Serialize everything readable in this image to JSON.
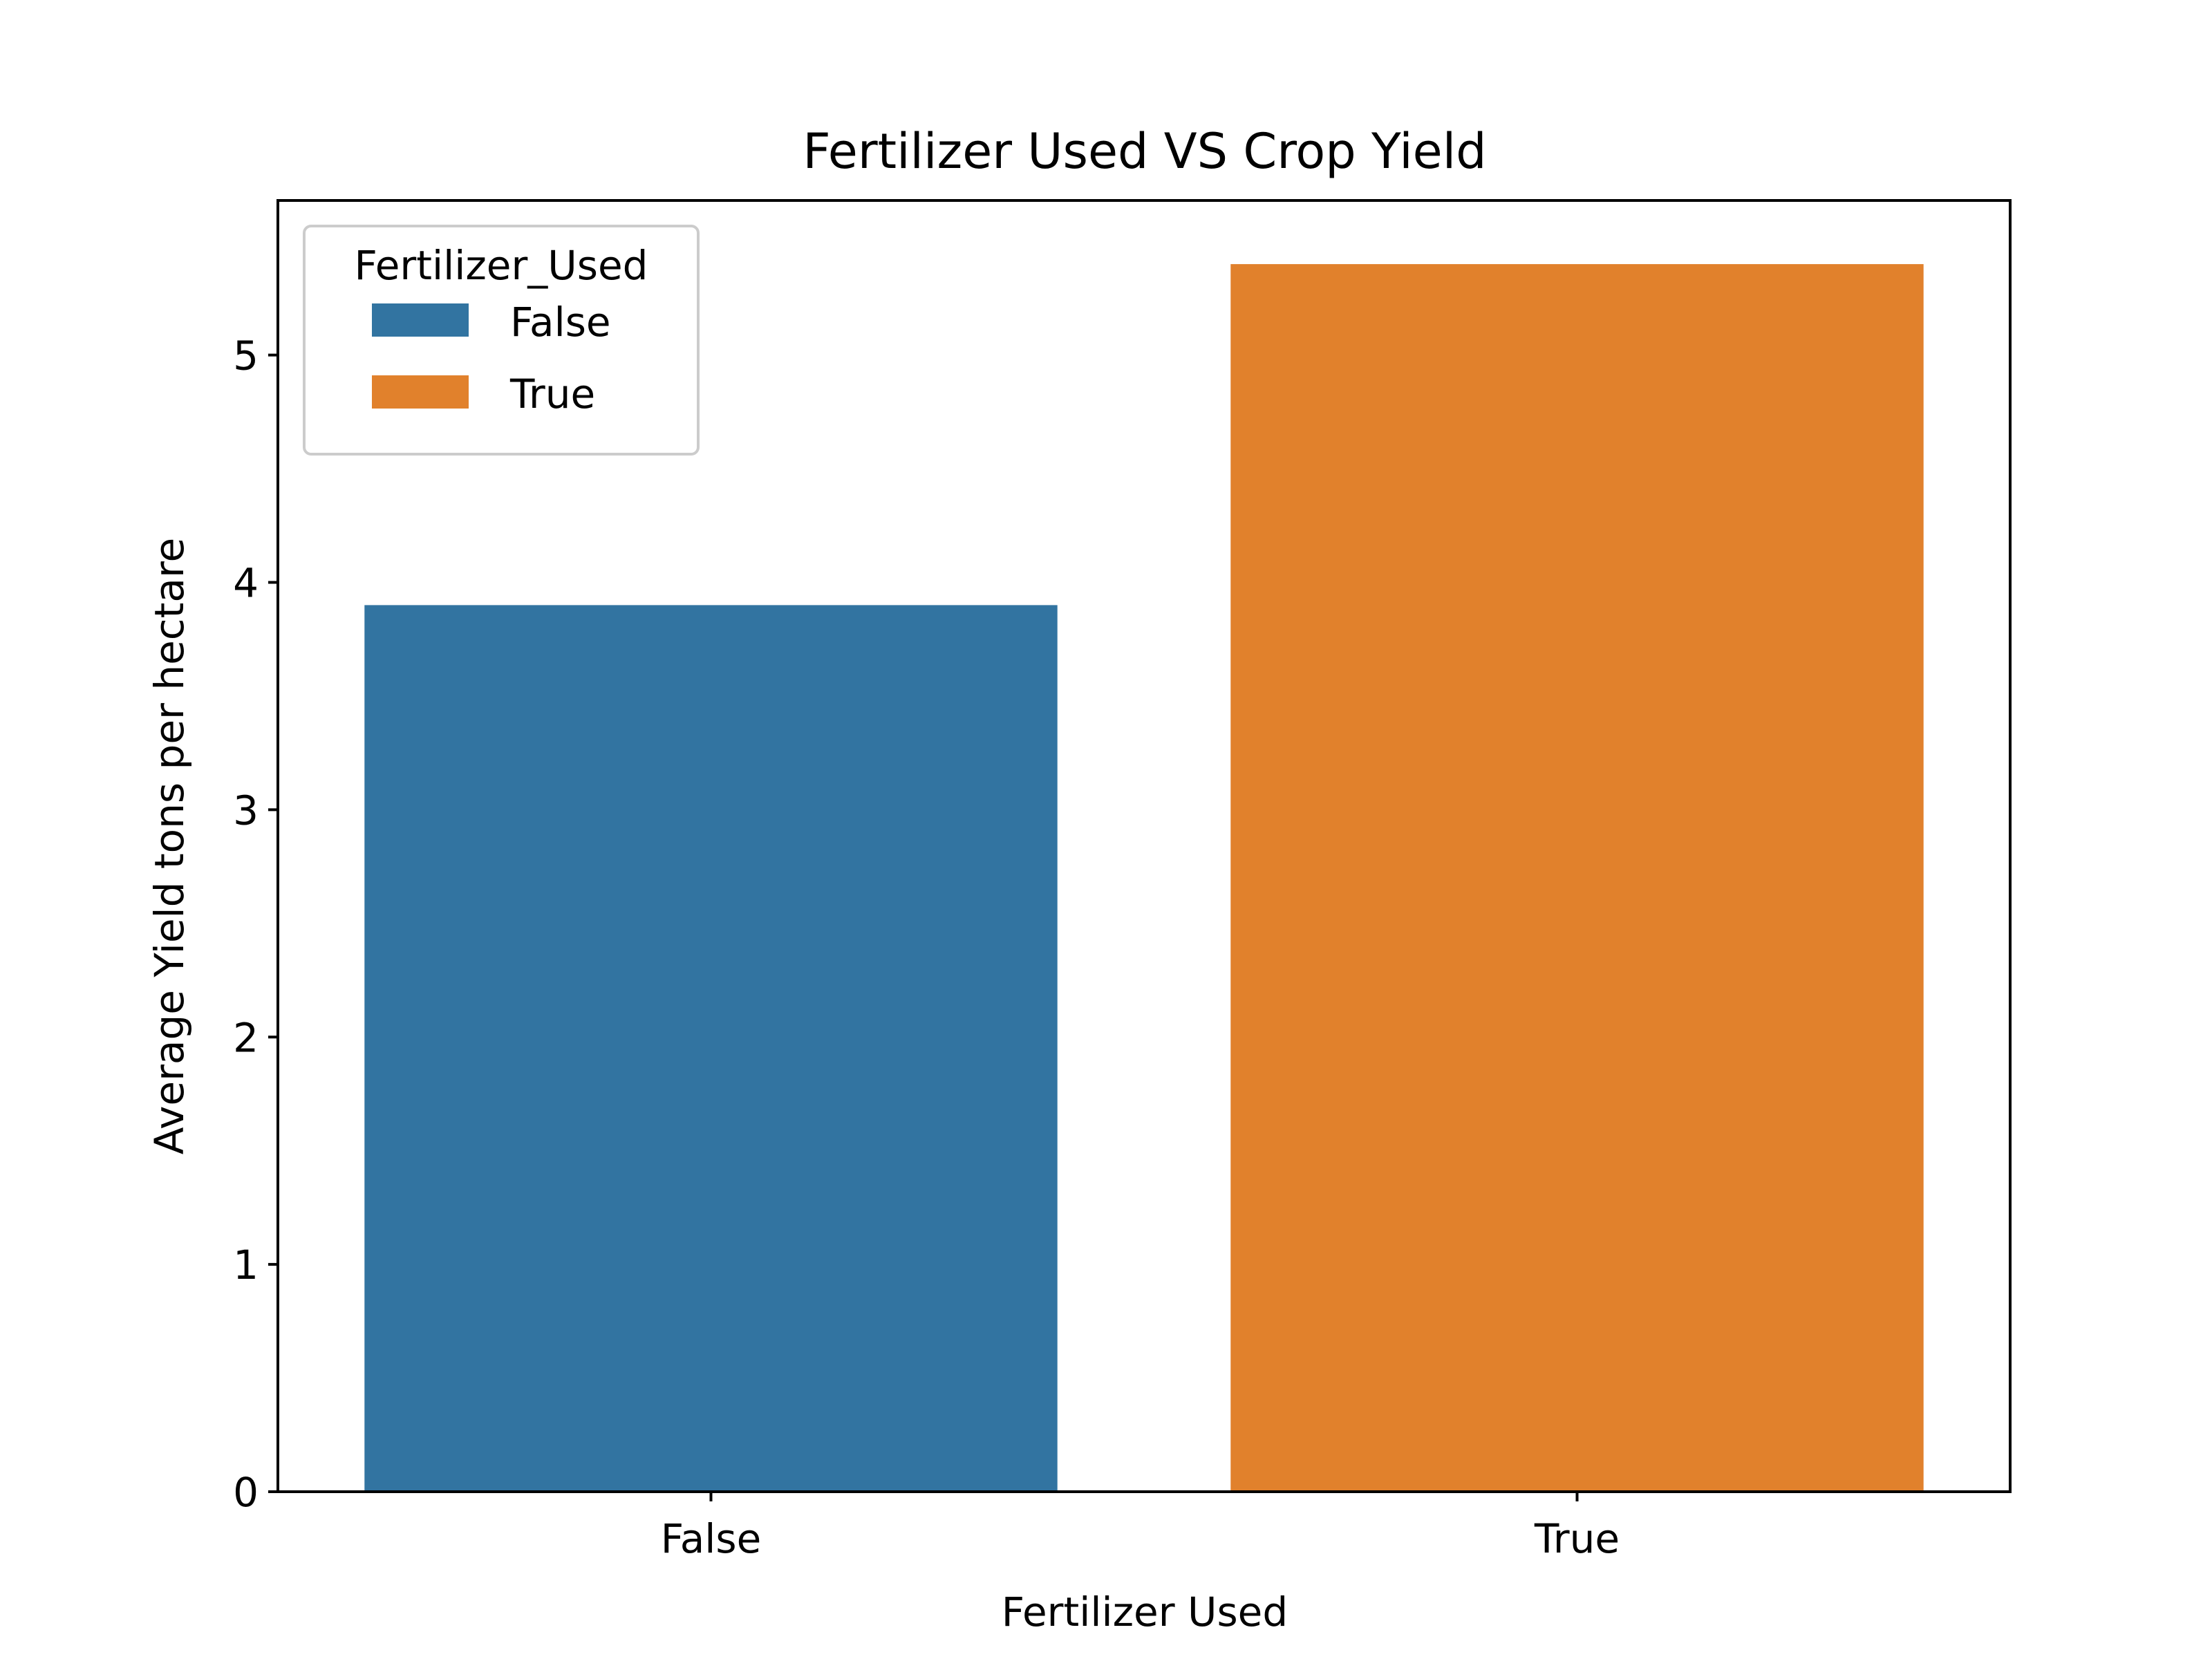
{
  "chart_data": {
    "type": "bar",
    "title": "Fertilizer Used VS Crop Yield",
    "xlabel": "Fertilizer Used",
    "ylabel": "Average Yield tons per hectare",
    "categories": [
      "False",
      "True"
    ],
    "values": [
      3.9,
      5.4
    ],
    "colors": [
      "#3274a1",
      "#e1812c"
    ],
    "ylim": [
      0,
      5.68
    ],
    "yticks": [
      0,
      1,
      2,
      3,
      4,
      5
    ],
    "grid": false,
    "legend": {
      "title": "Fertilizer_Used",
      "placement": "top-left",
      "entries": [
        {
          "label": "False",
          "color": "#3274a1"
        },
        {
          "label": "True",
          "color": "#e1812c"
        }
      ]
    }
  }
}
